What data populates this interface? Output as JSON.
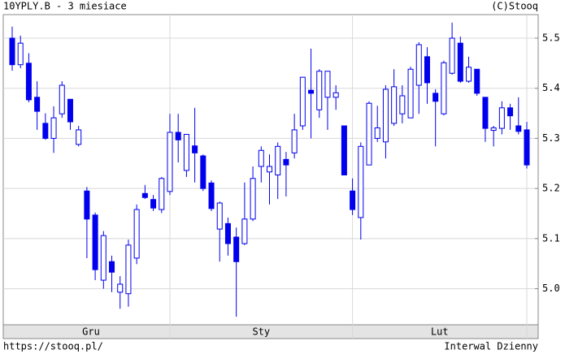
{
  "chart_data": {
    "type": "candlestick",
    "title": "10YPLY.B - 3 miesiace",
    "copyright": "(C)Stooq",
    "source": "https://stooq.pl/",
    "interval": "Interwal Dzienny",
    "color": "#0000ee",
    "grid": true,
    "ylim": [
      4.928,
      5.547
    ],
    "yticks": [
      {
        "value": 5,
        "label": "5.0"
      },
      5.1,
      5.2,
      5.3,
      5.4,
      5.5
    ],
    "months": [
      "Gru",
      "Sty",
      "Lut"
    ],
    "month_grid": [
      19,
      41,
      62
    ],
    "categories": [
      null,
      null,
      null,
      null,
      null,
      null,
      null,
      null,
      null,
      null,
      null,
      null,
      null,
      null,
      null,
      null,
      null,
      null,
      null,
      null,
      null,
      null,
      null,
      null,
      null,
      null,
      null,
      null,
      null,
      null,
      null,
      null,
      null,
      null,
      null,
      null,
      null,
      null,
      null,
      null,
      null,
      null,
      null,
      null,
      null,
      null,
      null,
      null,
      null,
      null,
      null,
      null,
      null,
      null,
      null,
      null,
      null,
      null,
      null,
      null,
      null,
      null,
      null
    ],
    "open": [
      5.5,
      5.447,
      5.45,
      5.382,
      5.33,
      5.3,
      5.349,
      5.378,
      5.288,
      5.195,
      5.147,
      5.017,
      5.054,
      4.993,
      4.99,
      5.061,
      5.19,
      5.178,
      5.158,
      5.194,
      5.312,
      5.236,
      5.285,
      5.265,
      5.211,
      5.119,
      5.13,
      5.103,
      5.09,
      5.139,
      5.244,
      5.233,
      5.227,
      5.258,
      5.271,
      5.325,
      5.396,
      5.357,
      5.382,
      5.382,
      5.325,
      5.195,
      5.142,
      5.247,
      5.3,
      5.293,
      5.33,
      5.349,
      5.341,
      5.406,
      5.463,
      5.39,
      5.349,
      5.43,
      5.49,
      5.414,
      5.438,
      5.382,
      5.316,
      5.32,
      5.361,
      5.325,
      5.317
    ],
    "high": [
      5.523,
      5.505,
      5.47,
      5.414,
      5.35,
      5.364,
      5.414,
      5.378,
      5.325,
      5.203,
      5.152,
      5.115,
      5.066,
      5.025,
      5.098,
      5.168,
      5.207,
      5.187,
      5.223,
      5.349,
      5.349,
      5.308,
      5.361,
      5.268,
      5.216,
      5.174,
      5.142,
      5.122,
      5.212,
      5.244,
      5.284,
      5.268,
      5.292,
      5.273,
      5.349,
      5.422,
      5.479,
      5.438,
      5.434,
      5.406,
      5.325,
      5.22,
      5.292,
      5.374,
      5.365,
      5.406,
      5.438,
      5.406,
      5.443,
      5.492,
      5.482,
      5.398,
      5.455,
      5.531,
      5.503,
      5.463,
      5.438,
      5.382,
      5.325,
      5.374,
      5.369,
      5.382,
      5.333
    ],
    "low": [
      5.435,
      5.44,
      5.372,
      5.317,
      5.297,
      5.271,
      5.341,
      5.317,
      5.284,
      5.061,
      5.017,
      5.0,
      4.993,
      4.96,
      4.964,
      5.049,
      5.179,
      5.155,
      5.151,
      5.187,
      5.252,
      5.223,
      5.212,
      5.195,
      5.155,
      5.054,
      5.066,
      4.944,
      5.087,
      5.135,
      5.212,
      5.168,
      5.179,
      5.184,
      5.26,
      5.317,
      5.3,
      5.341,
      5.317,
      5.357,
      5.227,
      5.147,
      5.098,
      5.247,
      5.293,
      5.26,
      5.325,
      5.33,
      5.341,
      5.349,
      5.369,
      5.284,
      5.346,
      5.427,
      5.411,
      5.411,
      5.385,
      5.293,
      5.284,
      5.308,
      5.317,
      5.308,
      5.24
    ],
    "close": [
      5.447,
      5.49,
      5.377,
      5.354,
      5.3,
      5.341,
      5.406,
      5.333,
      5.317,
      5.139,
      5.038,
      5.106,
      5.033,
      5.009,
      5.087,
      5.158,
      5.182,
      5.161,
      5.22,
      5.312,
      5.297,
      5.308,
      5.271,
      5.2,
      5.16,
      5.171,
      5.09,
      5.054,
      5.139,
      5.22,
      5.276,
      5.244,
      5.284,
      5.247,
      5.317,
      5.422,
      5.39,
      5.434,
      5.434,
      5.391,
      5.227,
      5.158,
      5.284,
      5.37,
      5.321,
      5.398,
      5.403,
      5.385,
      5.438,
      5.487,
      5.411,
      5.374,
      5.451,
      5.5,
      5.414,
      5.442,
      5.39,
      5.32,
      5.321,
      5.361,
      5.345,
      5.314,
      5.247
    ]
  }
}
